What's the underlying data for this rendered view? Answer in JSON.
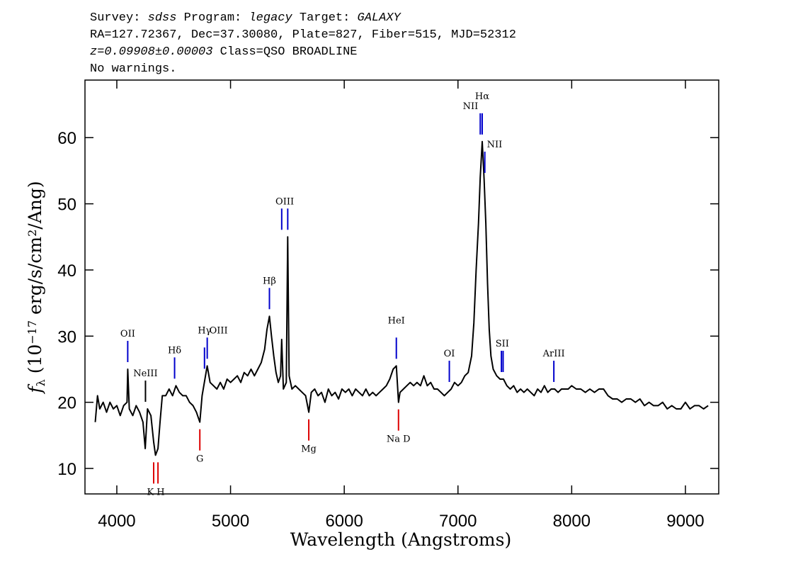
{
  "chart_data": {
    "type": "line",
    "header": [
      [
        {
          "text": "Survey: "
        },
        {
          "text": "sdss",
          "style": "italic"
        },
        {
          "text": " Program: "
        },
        {
          "text": "legacy",
          "style": "italic"
        },
        {
          "text": " Target: "
        },
        {
          "text": "GALAXY",
          "style": "italic"
        }
      ],
      [
        {
          "text": "RA=127.72367, Dec=37.30080, Plate=827, Fiber=515, MJD=52312"
        }
      ],
      [
        {
          "text": "z=0.09908±0.00003",
          "style": "italic"
        },
        {
          "text": " Class=QSO BROADLINE"
        }
      ],
      [
        {
          "text": "No warnings."
        }
      ]
    ],
    "xlabel": "Wavelength (Angstroms)",
    "ylabel": [
      {
        "text": "f",
        "style": "italic"
      },
      {
        "text": "λ",
        "style": "sub"
      },
      {
        "text": " (10"
      },
      {
        "text": "−17",
        "style": "sup"
      },
      {
        "text": " erg/s/cm"
      },
      {
        "text": "2",
        "style": "sup"
      },
      {
        "text": "/Ang)"
      }
    ],
    "xlim": [
      3720,
      9293
    ],
    "ylim": [
      6.15,
      68.7
    ],
    "xticks": [
      4000,
      5000,
      6000,
      7000,
      8000,
      9000
    ],
    "yticks": [
      10,
      20,
      30,
      40,
      50,
      60
    ],
    "color": "#000000",
    "x": [
      3810,
      3830,
      3850,
      3880,
      3910,
      3940,
      3970,
      4000,
      4030,
      4060,
      4090,
      4096,
      4110,
      4140,
      4170,
      4200,
      4230,
      4250,
      4270,
      4300,
      4324,
      4340,
      4362,
      4380,
      4400,
      4430,
      4460,
      4490,
      4520,
      4550,
      4580,
      4610,
      4640,
      4670,
      4700,
      4730,
      4750,
      4780,
      4795,
      4820,
      4850,
      4880,
      4910,
      4940,
      4970,
      5000,
      5030,
      5060,
      5090,
      5120,
      5150,
      5180,
      5210,
      5240,
      5270,
      5300,
      5320,
      5342,
      5360,
      5380,
      5400,
      5420,
      5440,
      5450,
      5465,
      5490,
      5503,
      5515,
      5540,
      5570,
      5600,
      5630,
      5660,
      5688,
      5710,
      5740,
      5770,
      5800,
      5830,
      5860,
      5890,
      5920,
      5950,
      5980,
      6010,
      6040,
      6070,
      6100,
      6130,
      6160,
      6190,
      6220,
      6250,
      6280,
      6310,
      6340,
      6370,
      6400,
      6430,
      6458,
      6477,
      6490,
      6520,
      6550,
      6580,
      6610,
      6640,
      6670,
      6700,
      6730,
      6760,
      6790,
      6820,
      6850,
      6880,
      6910,
      6940,
      6970,
      7000,
      7030,
      7060,
      7090,
      7120,
      7140,
      7160,
      7180,
      7196,
      7213,
      7230,
      7245,
      7260,
      7275,
      7290,
      7310,
      7340,
      7370,
      7400,
      7430,
      7460,
      7490,
      7520,
      7550,
      7580,
      7610,
      7640,
      7670,
      7700,
      7730,
      7760,
      7790,
      7820,
      7850,
      7880,
      7910,
      7940,
      7970,
      8000,
      8040,
      8080,
      8120,
      8160,
      8200,
      8240,
      8280,
      8320,
      8360,
      8400,
      8440,
      8480,
      8520,
      8560,
      8600,
      8640,
      8680,
      8720,
      8760,
      8800,
      8840,
      8880,
      8920,
      8960,
      9000,
      9040,
      9080,
      9120,
      9160,
      9200
    ],
    "values": [
      17,
      21,
      19,
      20,
      18.5,
      20,
      19,
      19.5,
      18,
      19.5,
      20,
      25,
      19,
      18,
      19.5,
      18.5,
      17,
      13,
      19,
      18,
      14,
      12,
      13,
      17,
      21,
      21,
      22,
      21,
      22.5,
      21.5,
      21,
      21,
      20,
      19.5,
      18.5,
      17,
      21,
      24,
      25.5,
      23,
      22.5,
      22,
      23,
      22,
      23.5,
      23,
      23.5,
      24,
      23,
      24.5,
      24,
      25,
      24,
      25,
      26,
      28,
      31,
      33,
      30,
      27,
      24.5,
      23,
      24,
      29.5,
      22,
      23,
      45,
      24,
      22,
      22.5,
      22,
      21.5,
      21,
      18.5,
      21.5,
      22,
      21,
      21.5,
      20,
      22,
      21,
      21.5,
      20.5,
      22,
      21.5,
      22,
      21,
      22,
      21.5,
      21,
      22,
      21,
      21.5,
      21,
      21.5,
      22,
      22.5,
      23.5,
      25,
      25.5,
      20,
      21.5,
      22,
      22.5,
      23,
      22.5,
      23,
      22.5,
      24,
      22.5,
      23,
      22,
      22,
      21.5,
      21,
      21.5,
      22,
      23,
      22.5,
      23,
      24,
      24.5,
      27,
      32,
      40,
      47,
      54,
      59.4,
      53.6,
      47,
      38,
      31,
      27,
      25,
      24,
      23.5,
      23.5,
      22.5,
      22,
      22.5,
      21.5,
      22,
      21.5,
      22,
      21.5,
      21,
      22,
      21.5,
      22.5,
      21.5,
      22,
      22,
      21.5,
      22,
      22,
      22,
      22.5,
      22,
      22,
      21.5,
      22,
      21.5,
      22,
      22,
      21,
      20.5,
      20.5,
      20,
      20.5,
      20.5,
      20,
      20.5,
      19.5,
      20,
      19.5,
      19.5,
      20,
      19,
      19.5,
      19,
      19,
      20,
      19,
      19.5,
      19.5,
      19,
      19.5
    ],
    "line_labels": [
      {
        "label": "OII",
        "wavelengths": [
          4096
        ],
        "kind": "emission",
        "anchor": "middle",
        "color": "#0000cc"
      },
      {
        "label": "NeIII",
        "wavelengths": [
          4252
        ],
        "kind": "emission",
        "anchor": "middle",
        "color": "#000000"
      },
      {
        "label": "Hδ",
        "wavelengths": [
          4508
        ],
        "kind": "emission",
        "anchor": "middle",
        "color": "#0000cc"
      },
      {
        "label": "Hγ",
        "wavelengths": [
          4771
        ],
        "kind": "emission",
        "anchor": "middle",
        "color": "#0000cc"
      },
      {
        "label": "OIII",
        "wavelengths": [
          4795
        ],
        "kind": "emission",
        "anchor": "start",
        "color": "#0000cc"
      },
      {
        "label": "Hβ",
        "wavelengths": [
          5342
        ],
        "kind": "emission",
        "anchor": "middle",
        "color": "#0000cc"
      },
      {
        "label": "OIII",
        "wavelengths": [
          5450,
          5503
        ],
        "kind": "emission",
        "anchor": "middle",
        "color": "#0000cc"
      },
      {
        "label": "HeI",
        "wavelengths": [
          6458
        ],
        "kind": "emission",
        "anchor": "middle",
        "color": "#0000cc"
      },
      {
        "label": "OI",
        "wavelengths": [
          6924
        ],
        "kind": "emission",
        "anchor": "middle",
        "color": "#0000cc"
      },
      {
        "label": "NII",
        "wavelengths": [
          7196
        ],
        "kind": "emission",
        "anchor": "end",
        "color": "#0000cc"
      },
      {
        "label": "Hα",
        "wavelengths": [
          7213
        ],
        "kind": "emission",
        "anchor": "middle",
        "color": "#0000cc"
      },
      {
        "label": "NII",
        "wavelengths": [
          7236
        ],
        "kind": "emission",
        "anchor": "start",
        "color": "#0000cc"
      },
      {
        "label": "SII",
        "wavelengths": [
          7382,
          7397
        ],
        "kind": "emission",
        "anchor": "middle",
        "color": "#0000cc"
      },
      {
        "label": "ArIII",
        "wavelengths": [
          7843
        ],
        "kind": "emission",
        "anchor": "middle",
        "color": "#0000cc"
      },
      {
        "label": "K H",
        "wavelengths": [
          4324,
          4362
        ],
        "kind": "absorption",
        "anchor": "middle",
        "color": "#dd0000"
      },
      {
        "label": "G",
        "wavelengths": [
          4730
        ],
        "kind": "absorption",
        "anchor": "middle",
        "color": "#dd0000"
      },
      {
        "label": "Mg",
        "wavelengths": [
          5688
        ],
        "kind": "absorption",
        "anchor": "middle",
        "color": "#dd0000"
      },
      {
        "label": "Na D",
        "wavelengths": [
          6477
        ],
        "kind": "absorption",
        "anchor": "middle",
        "color": "#dd0000"
      }
    ]
  }
}
